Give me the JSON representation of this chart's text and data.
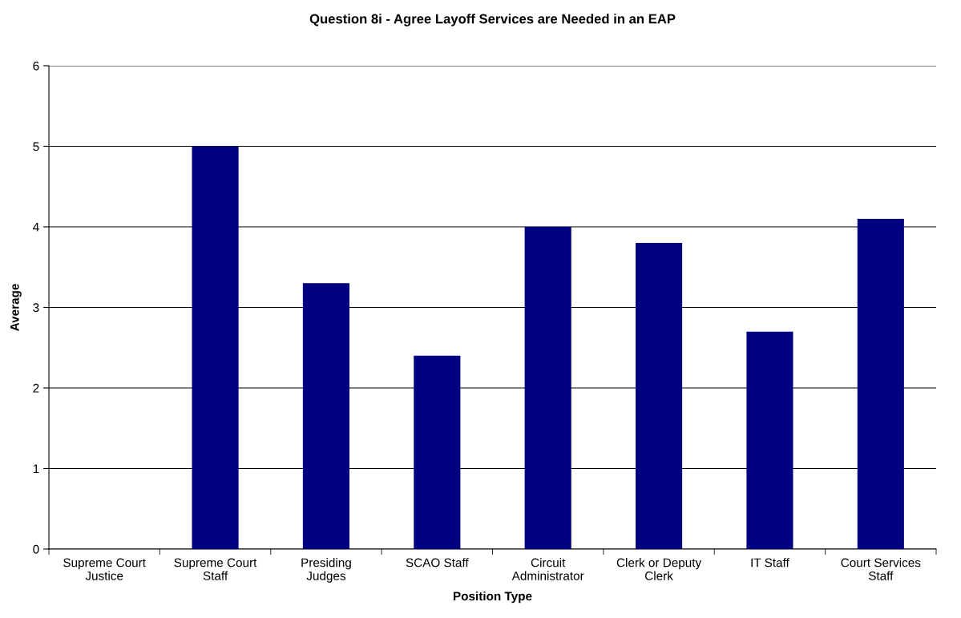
{
  "chart_data": {
    "type": "bar",
    "title": "Question 8i - Agree Layoff Services are Needed in an EAP",
    "xlabel": "Position Type",
    "ylabel": "Average",
    "categories": [
      "Supreme Court\nJustice",
      "Supreme Court\nStaff",
      "Presiding\nJudges",
      "SCAO Staff",
      "Circuit\nAdministrator",
      "Clerk or Deputy\nClerk",
      "IT Staff",
      "Court Services\nStaff"
    ],
    "values": [
      null,
      5.0,
      3.3,
      2.4,
      4.0,
      3.8,
      2.7,
      4.1
    ],
    "color": "#000080",
    "ylim": [
      0,
      6
    ],
    "yticks": [
      0,
      1,
      2,
      3,
      4,
      5,
      6
    ],
    "grid": "y",
    "legend": false
  }
}
